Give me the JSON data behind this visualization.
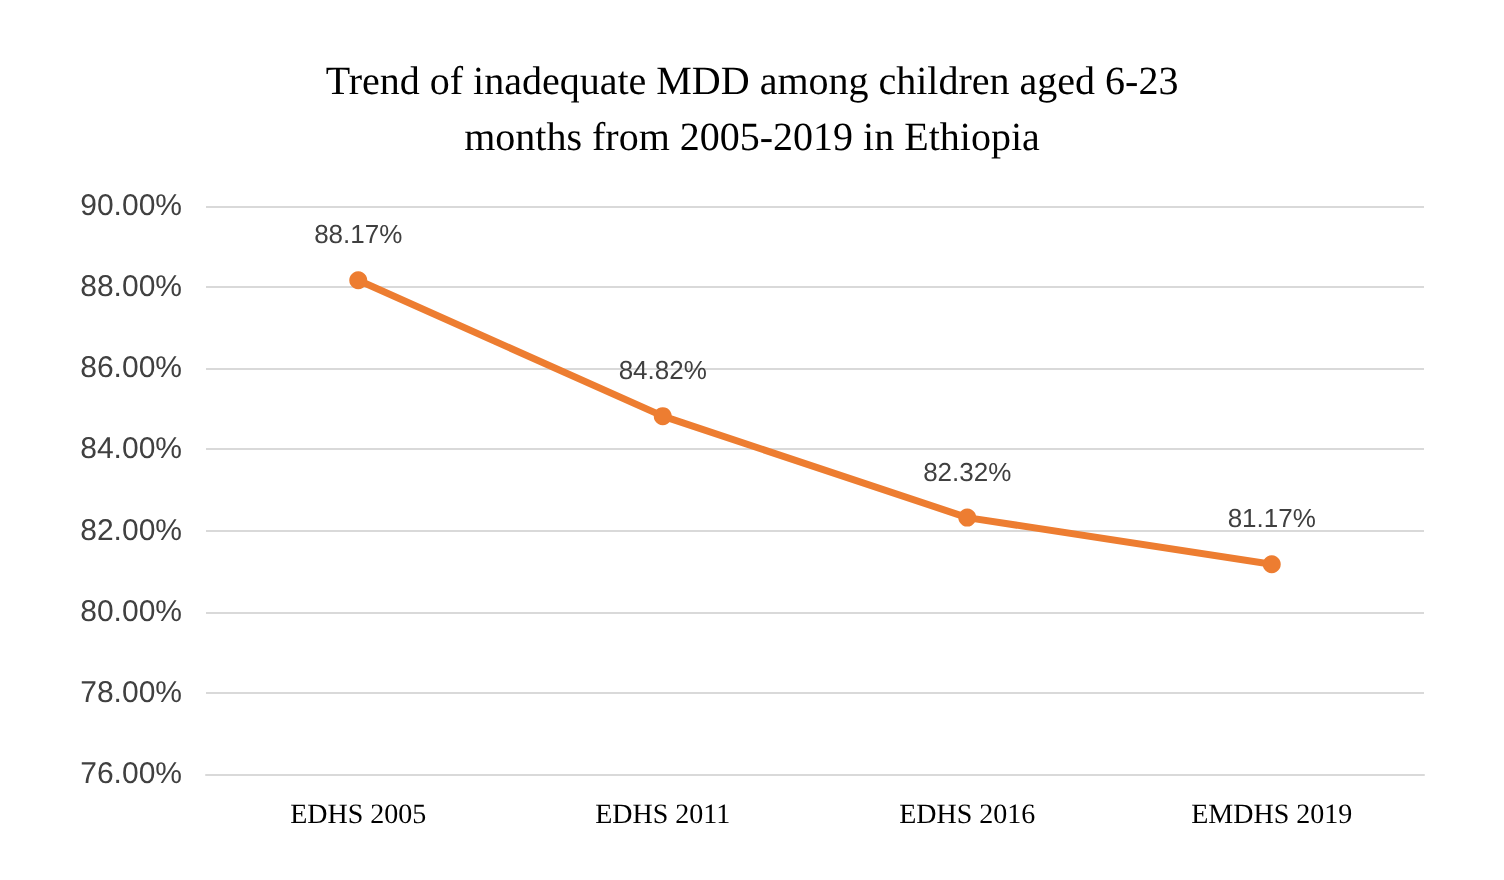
{
  "chart_data": {
    "type": "line",
    "title": "Trend of inadequate MDD among children aged 6-23\nmonths from 2005-2019 in Ethiopia",
    "categories": [
      "EDHS 2005",
      "EDHS 2011",
      "EDHS 2016",
      "EMDHS 2019"
    ],
    "series": [
      {
        "color": "#ed7d31",
        "values": [
          88.17,
          84.82,
          82.32,
          81.17
        ],
        "value_labels": [
          "88.17%",
          "84.82%",
          "82.32%",
          "81.17%"
        ]
      }
    ],
    "ylim": [
      76,
      90
    ],
    "yticks": [
      {
        "value": 76,
        "label": "76.00%"
      },
      {
        "value": 78,
        "label": "78.00%"
      },
      {
        "value": 80,
        "label": "80.00%"
      },
      {
        "value": 82,
        "label": "82.00%"
      },
      {
        "value": 84,
        "label": "84.00%"
      },
      {
        "value": 86,
        "label": "86.00%"
      },
      {
        "value": 88,
        "label": "88.00%"
      },
      {
        "value": 90,
        "label": "90.00%"
      }
    ],
    "grid": "y",
    "marker": "circle",
    "line_style": "solid"
  }
}
